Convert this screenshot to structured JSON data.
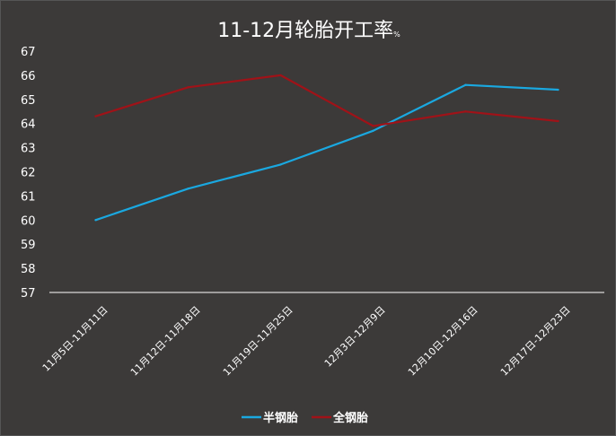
{
  "colors": {
    "background": "#3c3a39",
    "semi_steel": "#1aa8e0",
    "all_steel": "#a01218",
    "axis": "#ffffff"
  },
  "chart_data": {
    "type": "line",
    "title": "11-12月轮胎开工率",
    "title_unit": "%",
    "xlabel": "",
    "ylabel": "",
    "ylim": [
      57,
      67
    ],
    "yticks": [
      57,
      58,
      59,
      60,
      61,
      62,
      63,
      64,
      65,
      66,
      67
    ],
    "grid": false,
    "legend_position": "bottom",
    "categories": [
      "11月5日-11月11日",
      "11月12日-11月18日",
      "11月19日-11月25日",
      "12月3日-12月9日",
      "12月10日-12月16日",
      "12月17日-12月23日"
    ],
    "series": [
      {
        "name": "半钢胎",
        "color": "#1aa8e0",
        "values": [
          60.0,
          61.3,
          62.3,
          63.7,
          65.6,
          65.4
        ]
      },
      {
        "name": "全钢胎",
        "color": "#a01218",
        "values": [
          64.3,
          65.5,
          66.0,
          63.9,
          64.5,
          64.1
        ]
      }
    ]
  }
}
